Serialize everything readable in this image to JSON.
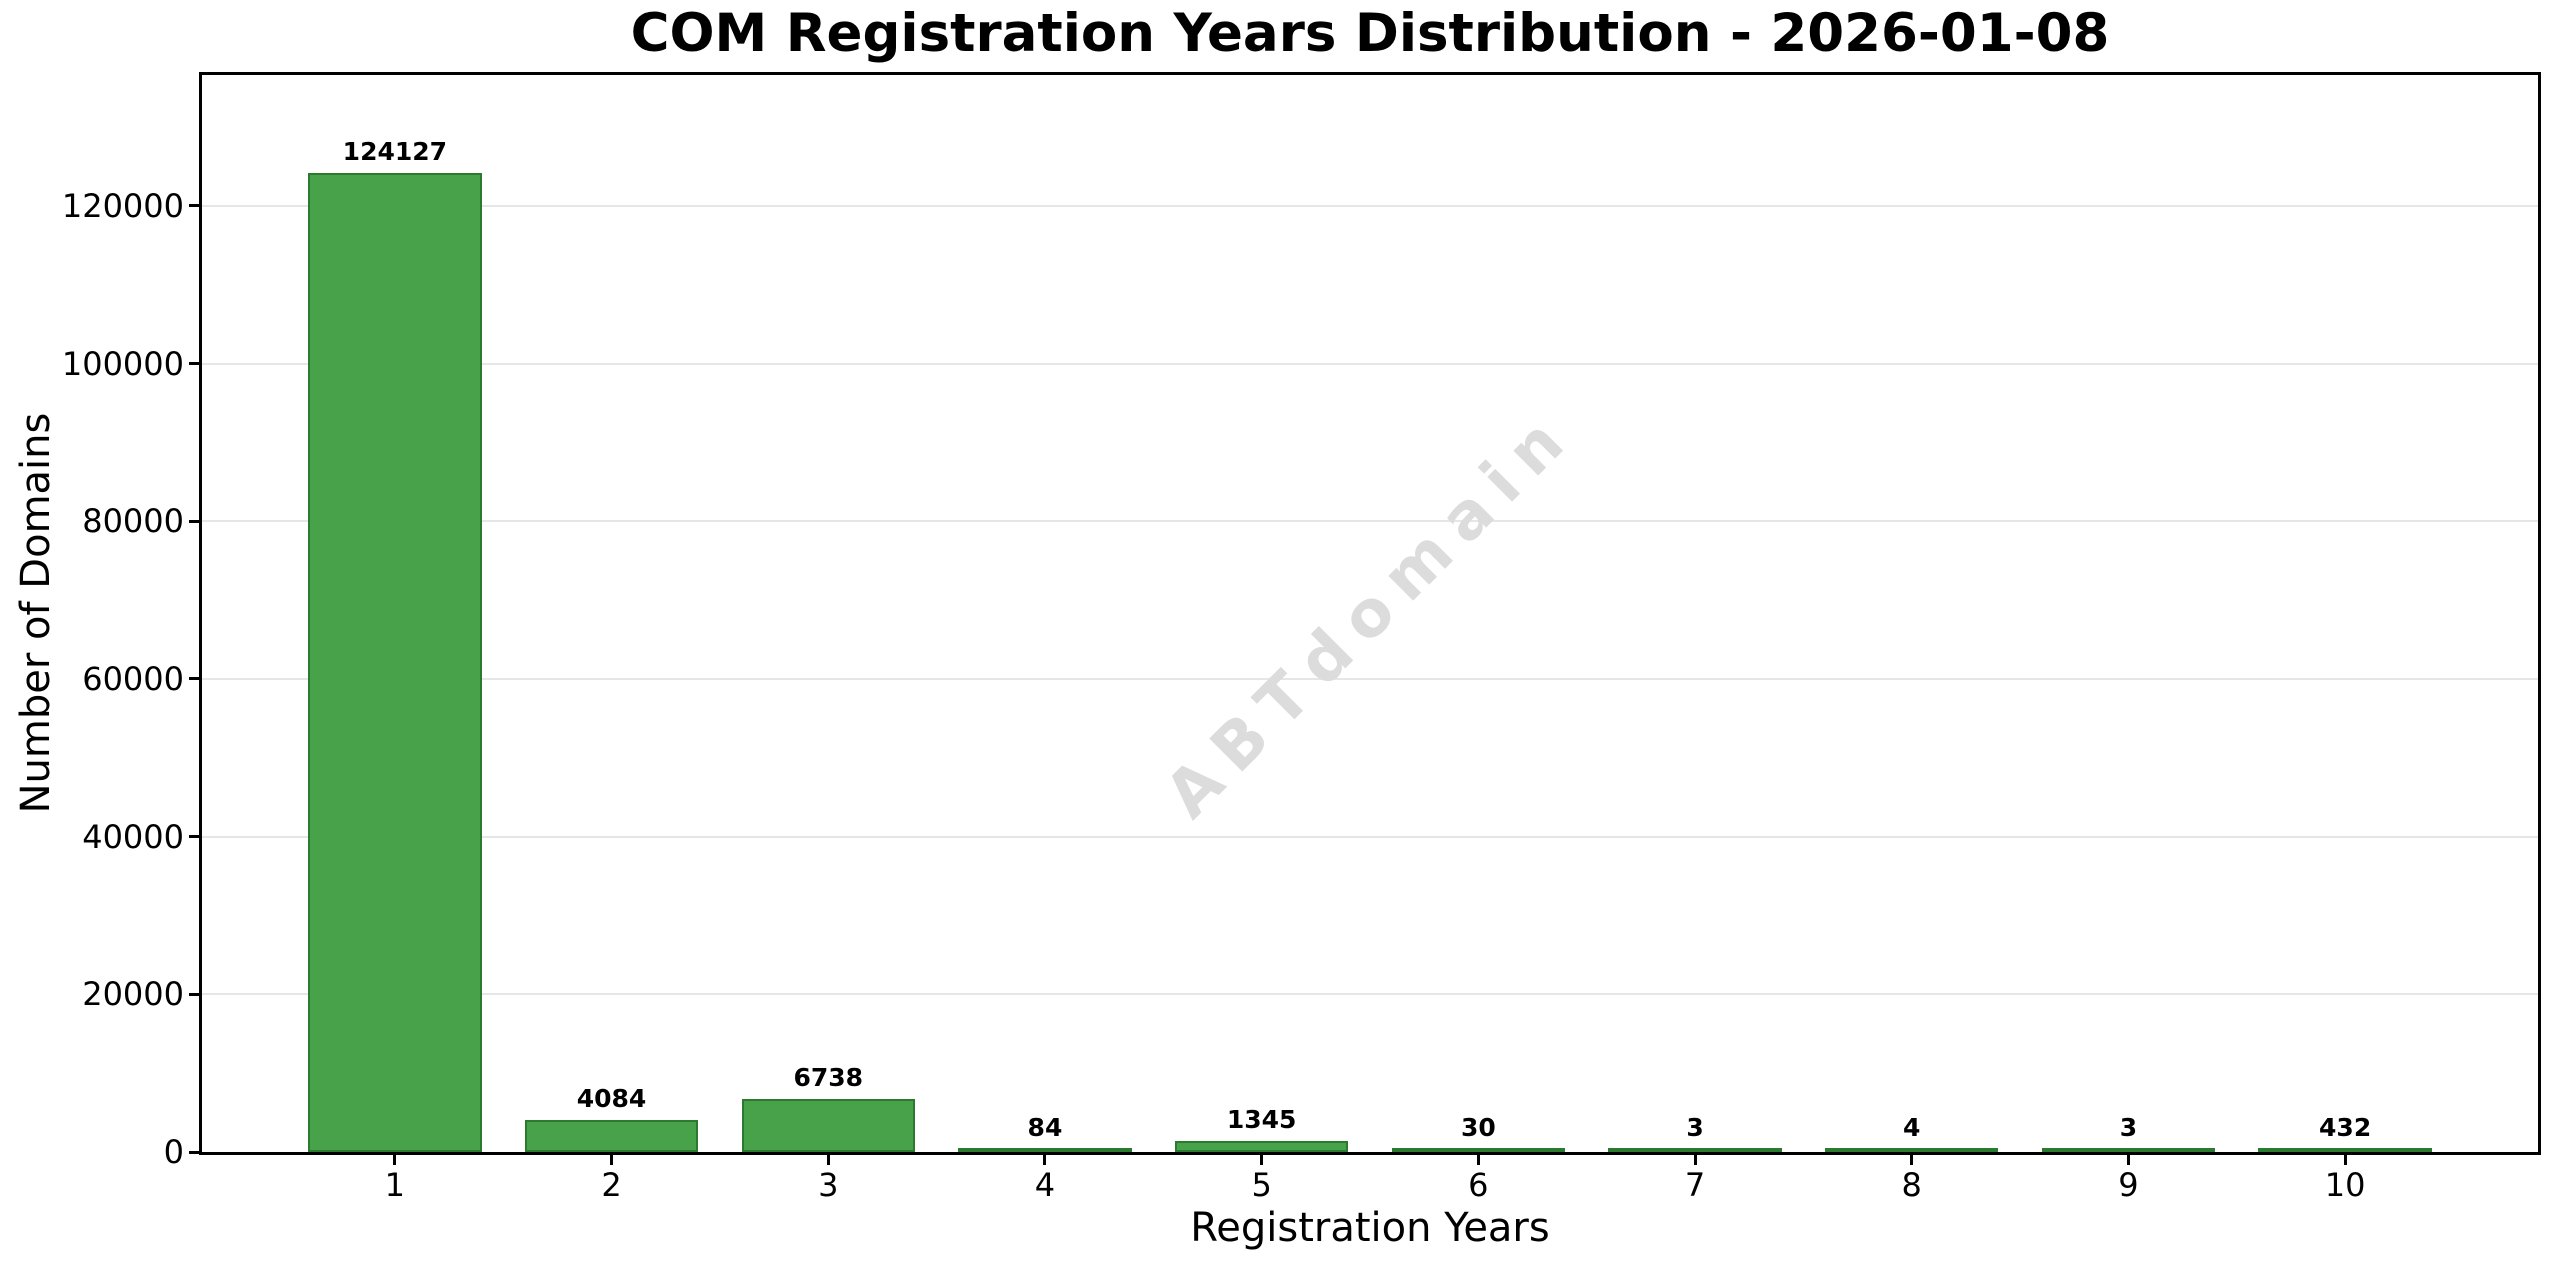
{
  "chart_data": {
    "type": "bar",
    "title": "COM Registration Years Distribution - 2026-01-08",
    "xlabel": "Registration Years",
    "ylabel": "Number of Domains",
    "categories": [
      "1",
      "2",
      "3",
      "4",
      "5",
      "6",
      "7",
      "8",
      "9",
      "10"
    ],
    "values": [
      124127,
      4084,
      6738,
      84,
      1345,
      30,
      3,
      4,
      3,
      432
    ],
    "bar_labels": [
      "124127",
      "4084",
      "6738",
      "84",
      "1345",
      "30",
      "3",
      "4",
      "3",
      "432"
    ],
    "yticks": [
      0,
      20000,
      40000,
      60000,
      80000,
      100000,
      120000
    ],
    "ytick_labels": [
      "0",
      "20000",
      "40000",
      "60000",
      "80000",
      "100000",
      "120000"
    ],
    "ylim": [
      0,
      136600
    ],
    "xlim": [
      -0.89,
      9.89
    ],
    "bar_width_units": 0.8,
    "grid": "horizontal",
    "legend": "none",
    "watermark": "ABTdomain",
    "colors": {
      "bar_fill": "#47a24a",
      "bar_edge": "#2c7a30",
      "grid": "#e6e6e6",
      "spine": "#000000",
      "watermark": "#dcdcdc",
      "text": "#000000",
      "background": "#ffffff"
    }
  }
}
